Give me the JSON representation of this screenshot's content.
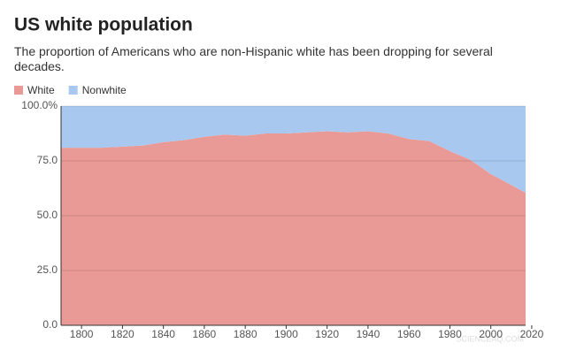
{
  "chart_data": {
    "type": "stacked-area",
    "title": "US white population",
    "subtitle": "The proportion of Americans who are non-Hispanic white has been dropping for several decades.",
    "x": [
      1790,
      1800,
      1810,
      1820,
      1830,
      1840,
      1850,
      1860,
      1870,
      1880,
      1890,
      1900,
      1910,
      1920,
      1930,
      1940,
      1950,
      1960,
      1970,
      1980,
      1990,
      2000,
      2010,
      2017
    ],
    "series": [
      {
        "name": "White",
        "color": "#ea9a96",
        "values": [
          81,
          81,
          81,
          81.5,
          82,
          83.5,
          84.5,
          86,
          87,
          86.5,
          87.5,
          87.5,
          88,
          88.5,
          88,
          88.5,
          87.5,
          85,
          84,
          79.5,
          75.5,
          69,
          64,
          60.5
        ]
      },
      {
        "name": "Nonwhite",
        "color": "#a8c8ef",
        "values": [
          19,
          19,
          19,
          18.5,
          18,
          16.5,
          15.5,
          14,
          13,
          13.5,
          12.5,
          12.5,
          12,
          11.5,
          12,
          11.5,
          12.5,
          15,
          16,
          20.5,
          24.5,
          31,
          36,
          39.5
        ]
      }
    ],
    "xlim": [
      1790,
      2017
    ],
    "xticks": [
      1800,
      1820,
      1840,
      1860,
      1880,
      1900,
      1920,
      1940,
      1960,
      1980,
      2000,
      2020
    ],
    "ylim": [
      0,
      100
    ],
    "yticks": [
      {
        "value": 0,
        "label": "0.0"
      },
      {
        "value": 25,
        "label": "25.0"
      },
      {
        "value": 50,
        "label": "50.0"
      },
      {
        "value": 75,
        "label": "75.0"
      },
      {
        "value": 100,
        "label": "100.0%"
      }
    ],
    "grid": true,
    "legend": "top-left",
    "watermark": "SCIENCEAQ.COM"
  }
}
